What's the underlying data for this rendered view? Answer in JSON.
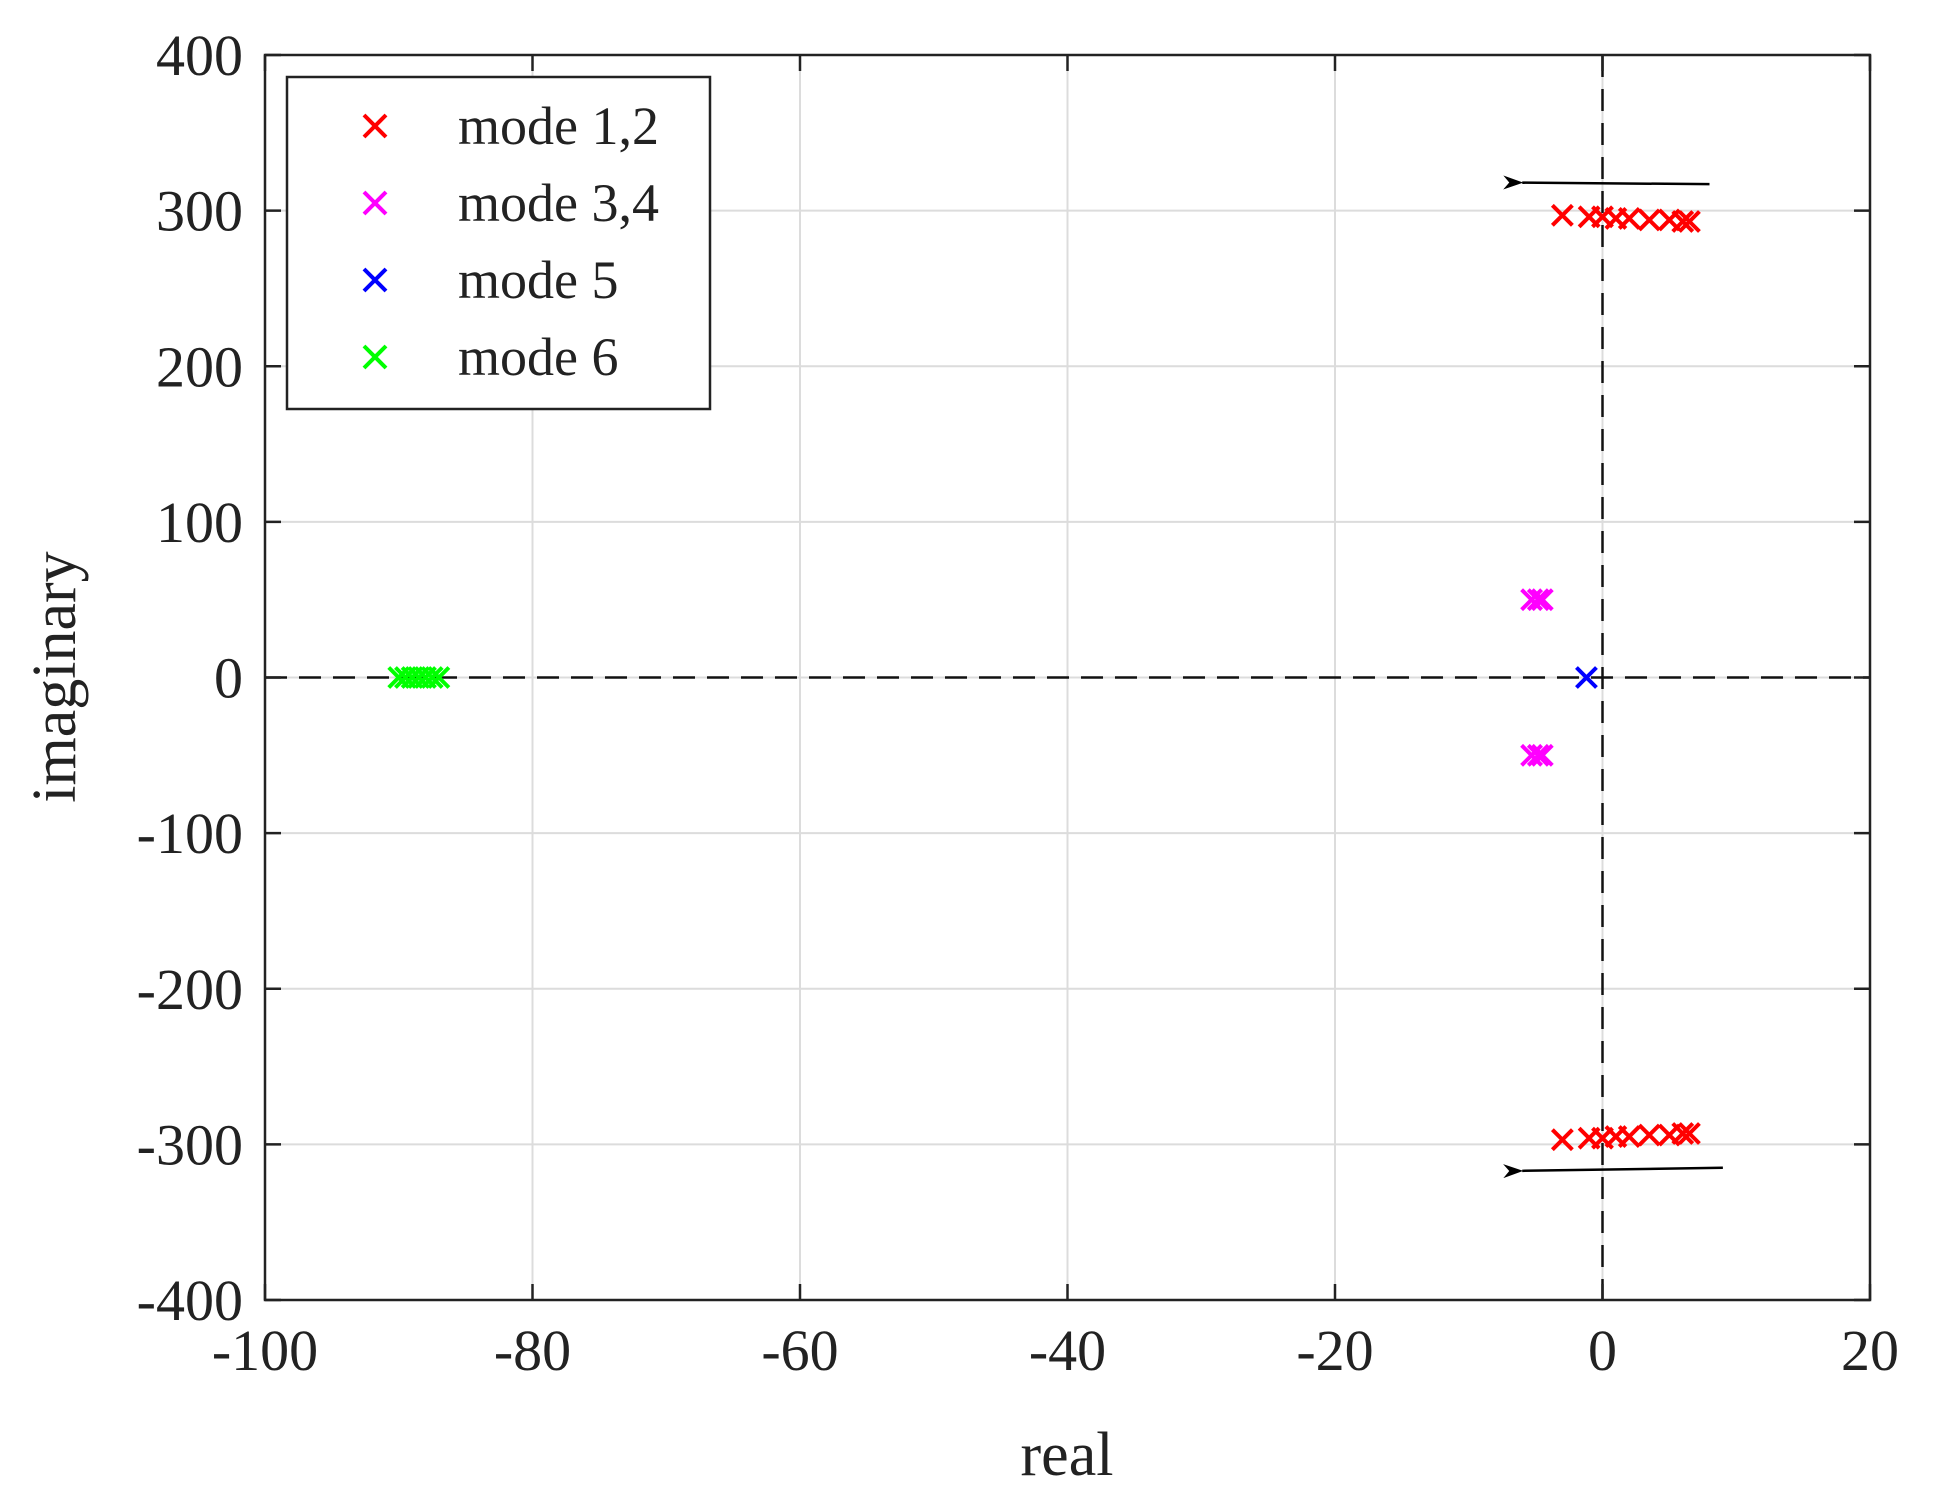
{
  "chart_data": {
    "type": "scatter",
    "title": "",
    "xlabel": "real",
    "ylabel": "imaginary",
    "xlim": [
      -100,
      20
    ],
    "ylim": [
      -400,
      400
    ],
    "xticks": [
      -100,
      -80,
      -60,
      -40,
      -20,
      0,
      20
    ],
    "yticks": [
      -400,
      -300,
      -200,
      -100,
      0,
      100,
      200,
      300,
      400
    ],
    "xtick_labels": [
      "-100",
      "-80",
      "-60",
      "-40",
      "-20",
      "0",
      "20"
    ],
    "ytick_labels": [
      "-400",
      "-300",
      "-200",
      "-100",
      "0",
      "100",
      "200",
      "300",
      "400"
    ],
    "grid": true,
    "legend_position": "top-left",
    "marker": "x",
    "reference_lines": [
      {
        "orientation": "horizontal",
        "value": 0,
        "style": "dashed"
      },
      {
        "orientation": "vertical",
        "value": 0,
        "style": "dashed"
      }
    ],
    "series": [
      {
        "name": "mode 1,2",
        "color": "#ff0000",
        "points": [
          [
            -3,
            297
          ],
          [
            -1,
            296
          ],
          [
            0,
            296
          ],
          [
            1,
            295
          ],
          [
            2,
            295
          ],
          [
            3.5,
            294
          ],
          [
            5,
            294
          ],
          [
            6,
            293
          ],
          [
            6.5,
            293
          ],
          [
            -3,
            -297
          ],
          [
            -1,
            -296
          ],
          [
            0,
            -296
          ],
          [
            1,
            -295
          ],
          [
            2,
            -295
          ],
          [
            3.5,
            -294
          ],
          [
            5,
            -294
          ],
          [
            6,
            -293
          ],
          [
            6.5,
            -293
          ]
        ]
      },
      {
        "name": "mode 3,4",
        "color": "#ff00ff",
        "points": [
          [
            -5.3,
            50
          ],
          [
            -4.8,
            50
          ],
          [
            -4.5,
            50
          ],
          [
            -5.3,
            -50
          ],
          [
            -4.8,
            -50
          ],
          [
            -4.5,
            -50
          ]
        ]
      },
      {
        "name": "mode 5",
        "color": "#0000ff",
        "points": [
          [
            -1.2,
            0
          ]
        ]
      },
      {
        "name": "mode 6",
        "color": "#00ff00",
        "points": [
          [
            -90,
            0
          ],
          [
            -89.5,
            0
          ],
          [
            -89,
            0
          ],
          [
            -88.5,
            0
          ],
          [
            -88,
            0
          ],
          [
            -87.5,
            0
          ],
          [
            -87,
            0
          ]
        ]
      }
    ],
    "annotations": [
      {
        "type": "arrow",
        "from": [
          8,
          317
        ],
        "to": [
          -6,
          318
        ]
      },
      {
        "type": "arrow",
        "from": [
          9,
          -315
        ],
        "to": [
          -6,
          -317
        ]
      }
    ]
  }
}
